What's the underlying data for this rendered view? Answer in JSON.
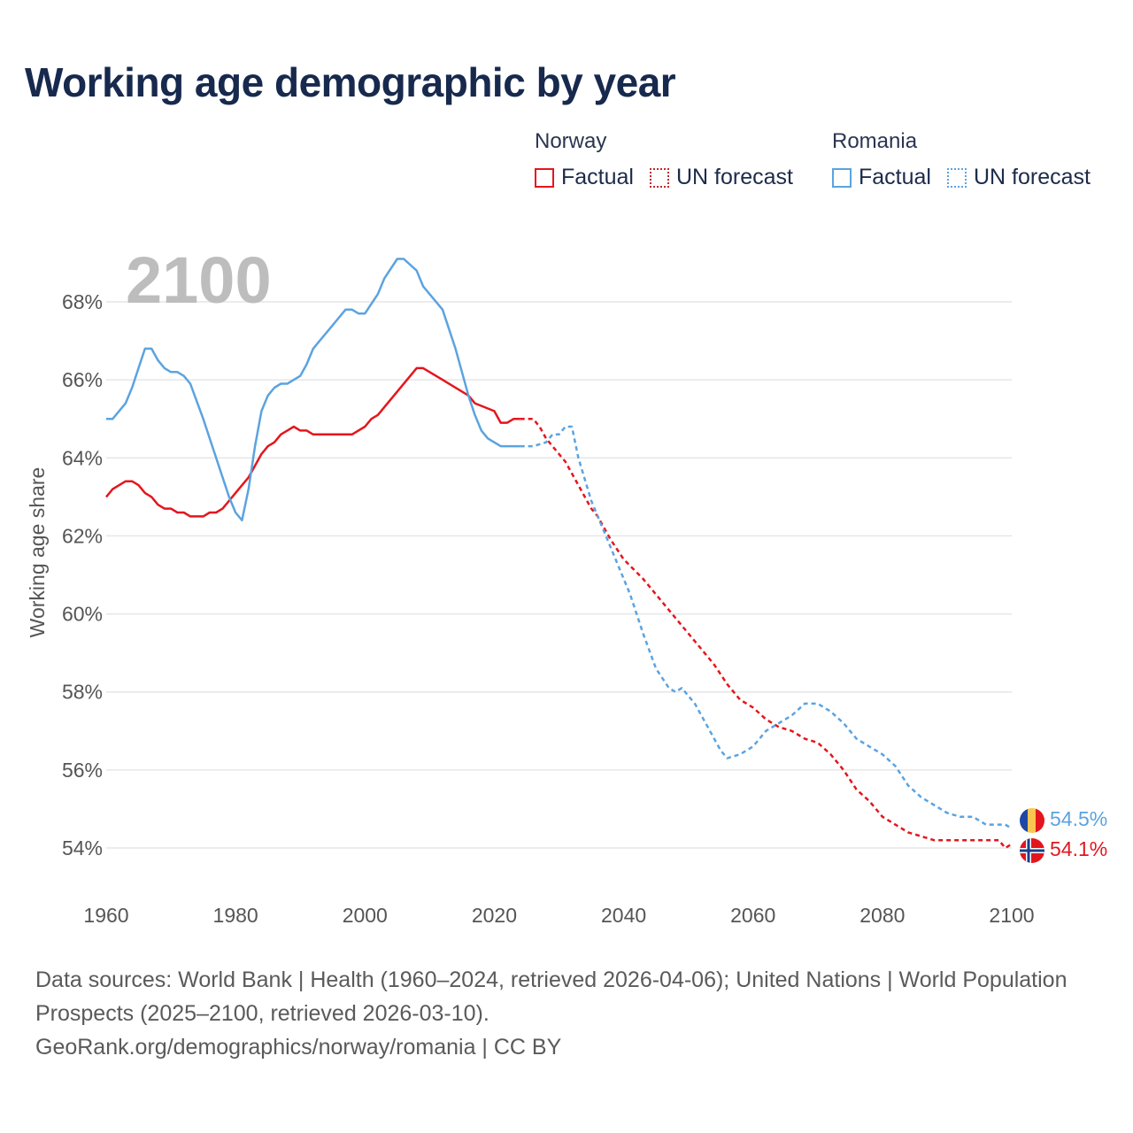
{
  "title": "Working age demographic by year",
  "legend": {
    "norway": {
      "name": "Norway",
      "factual": "Factual",
      "forecast": "UN forecast"
    },
    "romania": {
      "name": "Romania",
      "factual": "Factual",
      "forecast": "UN forecast"
    }
  },
  "year_label": "2100",
  "footer": {
    "sources": "Data sources: World Bank | Health (1960–2024, retrieved 2026-04-06); United Nations | World Population Prospects (2025–2100, retrieved 2026-03-10).",
    "link": "GeoRank.org/demographics/norway/romania | CC BY"
  },
  "colors": {
    "norway": "#e4161d",
    "romania": "#5ba3e0"
  },
  "chart_data": {
    "type": "line",
    "title": "Working age demographic by year",
    "xlabel": "",
    "ylabel": "Working age share",
    "xlim": [
      1960,
      2100
    ],
    "ylim": [
      53,
      69.5
    ],
    "x_ticks": [
      1960,
      1980,
      2000,
      2020,
      2040,
      2060,
      2080,
      2100
    ],
    "x_tick_labels": [
      "1960",
      "1980",
      "2000",
      "2020",
      "2040",
      "2060",
      "2080",
      "2100"
    ],
    "y_ticks": [
      54,
      56,
      58,
      60,
      62,
      64,
      66,
      68
    ],
    "y_tick_labels": [
      "54%",
      "56%",
      "58%",
      "60%",
      "62%",
      "64%",
      "66%",
      "68%"
    ],
    "grid": true,
    "series": [
      {
        "name": "Norway",
        "color": "#e4161d",
        "factual": {
          "x": [
            1960,
            1961,
            1963,
            1964,
            1965,
            1966,
            1967,
            1968,
            1969,
            1970,
            1971,
            1972,
            1973,
            1974,
            1975,
            1976,
            1977,
            1978,
            1980,
            1982,
            1983,
            1984,
            1985,
            1986,
            1987,
            1988,
            1989,
            1990,
            1991,
            1992,
            1996,
            1998,
            2000,
            2001,
            2002,
            2008,
            2009,
            2012,
            2016,
            2017,
            2020,
            2021,
            2022,
            2023,
            2024
          ],
          "y": [
            63.0,
            63.2,
            63.4,
            63.4,
            63.3,
            63.1,
            63.0,
            62.8,
            62.7,
            62.7,
            62.6,
            62.6,
            62.5,
            62.5,
            62.5,
            62.6,
            62.6,
            62.7,
            63.1,
            63.5,
            63.8,
            64.1,
            64.3,
            64.4,
            64.6,
            64.7,
            64.8,
            64.7,
            64.7,
            64.6,
            64.6,
            64.6,
            64.8,
            65.0,
            65.1,
            66.3,
            66.3,
            66.0,
            65.6,
            65.4,
            65.2,
            64.9,
            64.9,
            65.0,
            65.0
          ]
        },
        "forecast": {
          "x": [
            2024,
            2026,
            2027,
            2028,
            2029,
            2030,
            2031,
            2032,
            2033,
            2034,
            2035,
            2036,
            2038,
            2040,
            2043,
            2046,
            2049,
            2052,
            2054,
            2056,
            2058,
            2060,
            2062,
            2064,
            2066,
            2068,
            2070,
            2072,
            2074,
            2076,
            2078,
            2080,
            2082,
            2084,
            2086,
            2088,
            2090,
            2094,
            2098,
            2099,
            2100
          ],
          "y": [
            65.0,
            65.0,
            64.8,
            64.5,
            64.3,
            64.1,
            63.9,
            63.6,
            63.3,
            63.0,
            62.7,
            62.5,
            61.9,
            61.4,
            60.9,
            60.3,
            59.7,
            59.1,
            58.7,
            58.2,
            57.8,
            57.6,
            57.3,
            57.1,
            57.0,
            56.8,
            56.7,
            56.4,
            56.0,
            55.5,
            55.2,
            54.8,
            54.6,
            54.4,
            54.3,
            54.2,
            54.2,
            54.2,
            54.2,
            54.0,
            54.1
          ]
        },
        "end_value": "54.1%"
      },
      {
        "name": "Romania",
        "color": "#5ba3e0",
        "factual": {
          "x": [
            1960,
            1961,
            1963,
            1964,
            1965,
            1966,
            1967,
            1968,
            1969,
            1970,
            1971,
            1972,
            1973,
            1975,
            1977,
            1979,
            1980,
            1981,
            1982,
            1983,
            1984,
            1985,
            1986,
            1987,
            1988,
            1989,
            1990,
            1991,
            1992,
            1993,
            1995,
            1996,
            1997,
            1998,
            1999,
            2000,
            2002,
            2003,
            2005,
            2006,
            2008,
            2009,
            2012,
            2014,
            2016,
            2017,
            2018,
            2019,
            2020,
            2021,
            2023,
            2024
          ],
          "y": [
            65.0,
            65.0,
            65.4,
            65.8,
            66.3,
            66.8,
            66.8,
            66.5,
            66.3,
            66.2,
            66.2,
            66.1,
            65.9,
            65.0,
            64.0,
            63.0,
            62.6,
            62.4,
            63.2,
            64.3,
            65.2,
            65.6,
            65.8,
            65.9,
            65.9,
            66.0,
            66.1,
            66.4,
            66.8,
            67.0,
            67.4,
            67.6,
            67.8,
            67.8,
            67.7,
            67.7,
            68.2,
            68.6,
            69.1,
            69.1,
            68.8,
            68.4,
            67.8,
            66.8,
            65.6,
            65.1,
            64.7,
            64.5,
            64.4,
            64.3,
            64.3,
            64.3
          ]
        },
        "forecast": {
          "x": [
            2024,
            2026,
            2028,
            2029,
            2030,
            2031,
            2032,
            2033,
            2035,
            2037,
            2039,
            2041,
            2043,
            2045,
            2047,
            2048,
            2049,
            2051,
            2053,
            2055,
            2056,
            2058,
            2060,
            2062,
            2064,
            2066,
            2068,
            2070,
            2072,
            2074,
            2076,
            2078,
            2080,
            2082,
            2084,
            2086,
            2088,
            2090,
            2092,
            2094,
            2096,
            2098,
            2099,
            2100
          ],
          "y": [
            64.3,
            64.3,
            64.4,
            64.6,
            64.6,
            64.8,
            64.8,
            64.0,
            62.9,
            62.1,
            61.3,
            60.5,
            59.5,
            58.6,
            58.1,
            58.0,
            58.1,
            57.7,
            57.1,
            56.5,
            56.3,
            56.4,
            56.6,
            57.0,
            57.2,
            57.4,
            57.7,
            57.7,
            57.5,
            57.2,
            56.8,
            56.6,
            56.4,
            56.1,
            55.6,
            55.3,
            55.1,
            54.9,
            54.8,
            54.8,
            54.6,
            54.6,
            54.6,
            54.5
          ]
        },
        "end_value": "54.5%"
      }
    ]
  }
}
